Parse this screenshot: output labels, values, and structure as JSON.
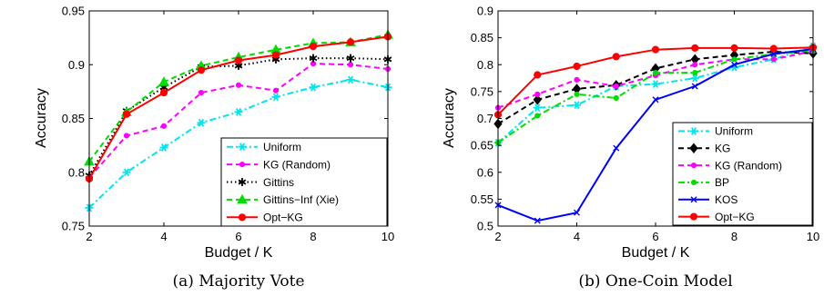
{
  "chart_data": [
    {
      "type": "line",
      "caption": "(a) Majority Vote",
      "xlabel": "Budget / K",
      "ylabel": "Accuracy",
      "xlim": [
        2,
        10
      ],
      "ylim": [
        0.75,
        0.95
      ],
      "xticks": [
        "2",
        "4",
        "6",
        "8",
        "10"
      ],
      "yticks": [
        "0.75",
        "0.8",
        "0.85",
        "0.9",
        "0.95"
      ],
      "grid": false,
      "legend_position": "bottom-right",
      "x": [
        2,
        3,
        4,
        5,
        6,
        7,
        8,
        9,
        10
      ],
      "series": [
        {
          "name": "Uniform",
          "color": "#00e5ee",
          "dash": "dashdot",
          "marker": "asterisk",
          "values": [
            0.767,
            0.8,
            0.823,
            0.846,
            0.856,
            0.87,
            0.879,
            0.886,
            0.879
          ]
        },
        {
          "name": "KG (Random)",
          "color": "#ff00ff",
          "dash": "dashed",
          "marker": "dot",
          "values": [
            0.795,
            0.834,
            0.843,
            0.874,
            0.881,
            0.876,
            0.901,
            0.9,
            0.896
          ]
        },
        {
          "name": "Gittins",
          "color": "#000000",
          "dash": "dotted",
          "marker": "hexstar",
          "values": [
            0.797,
            0.857,
            0.879,
            0.898,
            0.899,
            0.905,
            0.906,
            0.906,
            0.905
          ]
        },
        {
          "name": "Gittins−Inf (Xie)",
          "color": "#00dd00",
          "dash": "dashed",
          "marker": "triangle",
          "values": [
            0.81,
            0.856,
            0.884,
            0.899,
            0.907,
            0.914,
            0.92,
            0.921,
            0.928
          ]
        },
        {
          "name": "Opt−KG",
          "color": "#ff0000",
          "dash": "solid",
          "marker": "circle",
          "values": [
            0.794,
            0.854,
            0.874,
            0.895,
            0.904,
            0.909,
            0.917,
            0.921,
            0.926
          ]
        }
      ]
    },
    {
      "type": "line",
      "caption": "(b) One-Coin Model",
      "xlabel": "Budget / K",
      "ylabel": "Accuracy",
      "xlim": [
        2,
        10
      ],
      "ylim": [
        0.5,
        0.9
      ],
      "xticks": [
        "2",
        "4",
        "6",
        "8",
        "10"
      ],
      "yticks": [
        "0.5",
        "0.55",
        "0.6",
        "0.65",
        "0.7",
        "0.75",
        "0.8",
        "0.85",
        "0.9"
      ],
      "grid": false,
      "legend_position": "bottom-right",
      "x": [
        2,
        3,
        4,
        5,
        6,
        7,
        8,
        9,
        10
      ],
      "series": [
        {
          "name": "Uniform",
          "color": "#00e5ee",
          "dash": "dashdot",
          "marker": "asterisk",
          "values": [
            0.655,
            0.72,
            0.725,
            0.76,
            0.764,
            0.775,
            0.795,
            0.81,
            0.834
          ]
        },
        {
          "name": "KG",
          "color": "#000000",
          "dash": "dashed",
          "marker": "diamond",
          "values": [
            0.69,
            0.735,
            0.755,
            0.762,
            0.793,
            0.81,
            0.818,
            0.824,
            0.821
          ]
        },
        {
          "name": "KG (Random)",
          "color": "#ff00ff",
          "dash": "dashed",
          "marker": "dot",
          "values": [
            0.72,
            0.745,
            0.772,
            0.76,
            0.78,
            0.8,
            0.81,
            0.81,
            0.825
          ]
        },
        {
          "name": "BP",
          "color": "#00dd00",
          "dash": "dashdot",
          "marker": "dot",
          "values": [
            0.655,
            0.705,
            0.745,
            0.738,
            0.785,
            0.785,
            0.81,
            0.82,
            0.826
          ]
        },
        {
          "name": "KOS",
          "color": "#0000ff",
          "dash": "solid",
          "marker": "x",
          "values": [
            0.539,
            0.51,
            0.525,
            0.645,
            0.735,
            0.76,
            0.8,
            0.82,
            0.829
          ]
        },
        {
          "name": "Opt−KG",
          "color": "#ff0000",
          "dash": "solid",
          "marker": "circle",
          "values": [
            0.707,
            0.781,
            0.797,
            0.815,
            0.828,
            0.831,
            0.831,
            0.83,
            0.832
          ]
        }
      ]
    }
  ]
}
